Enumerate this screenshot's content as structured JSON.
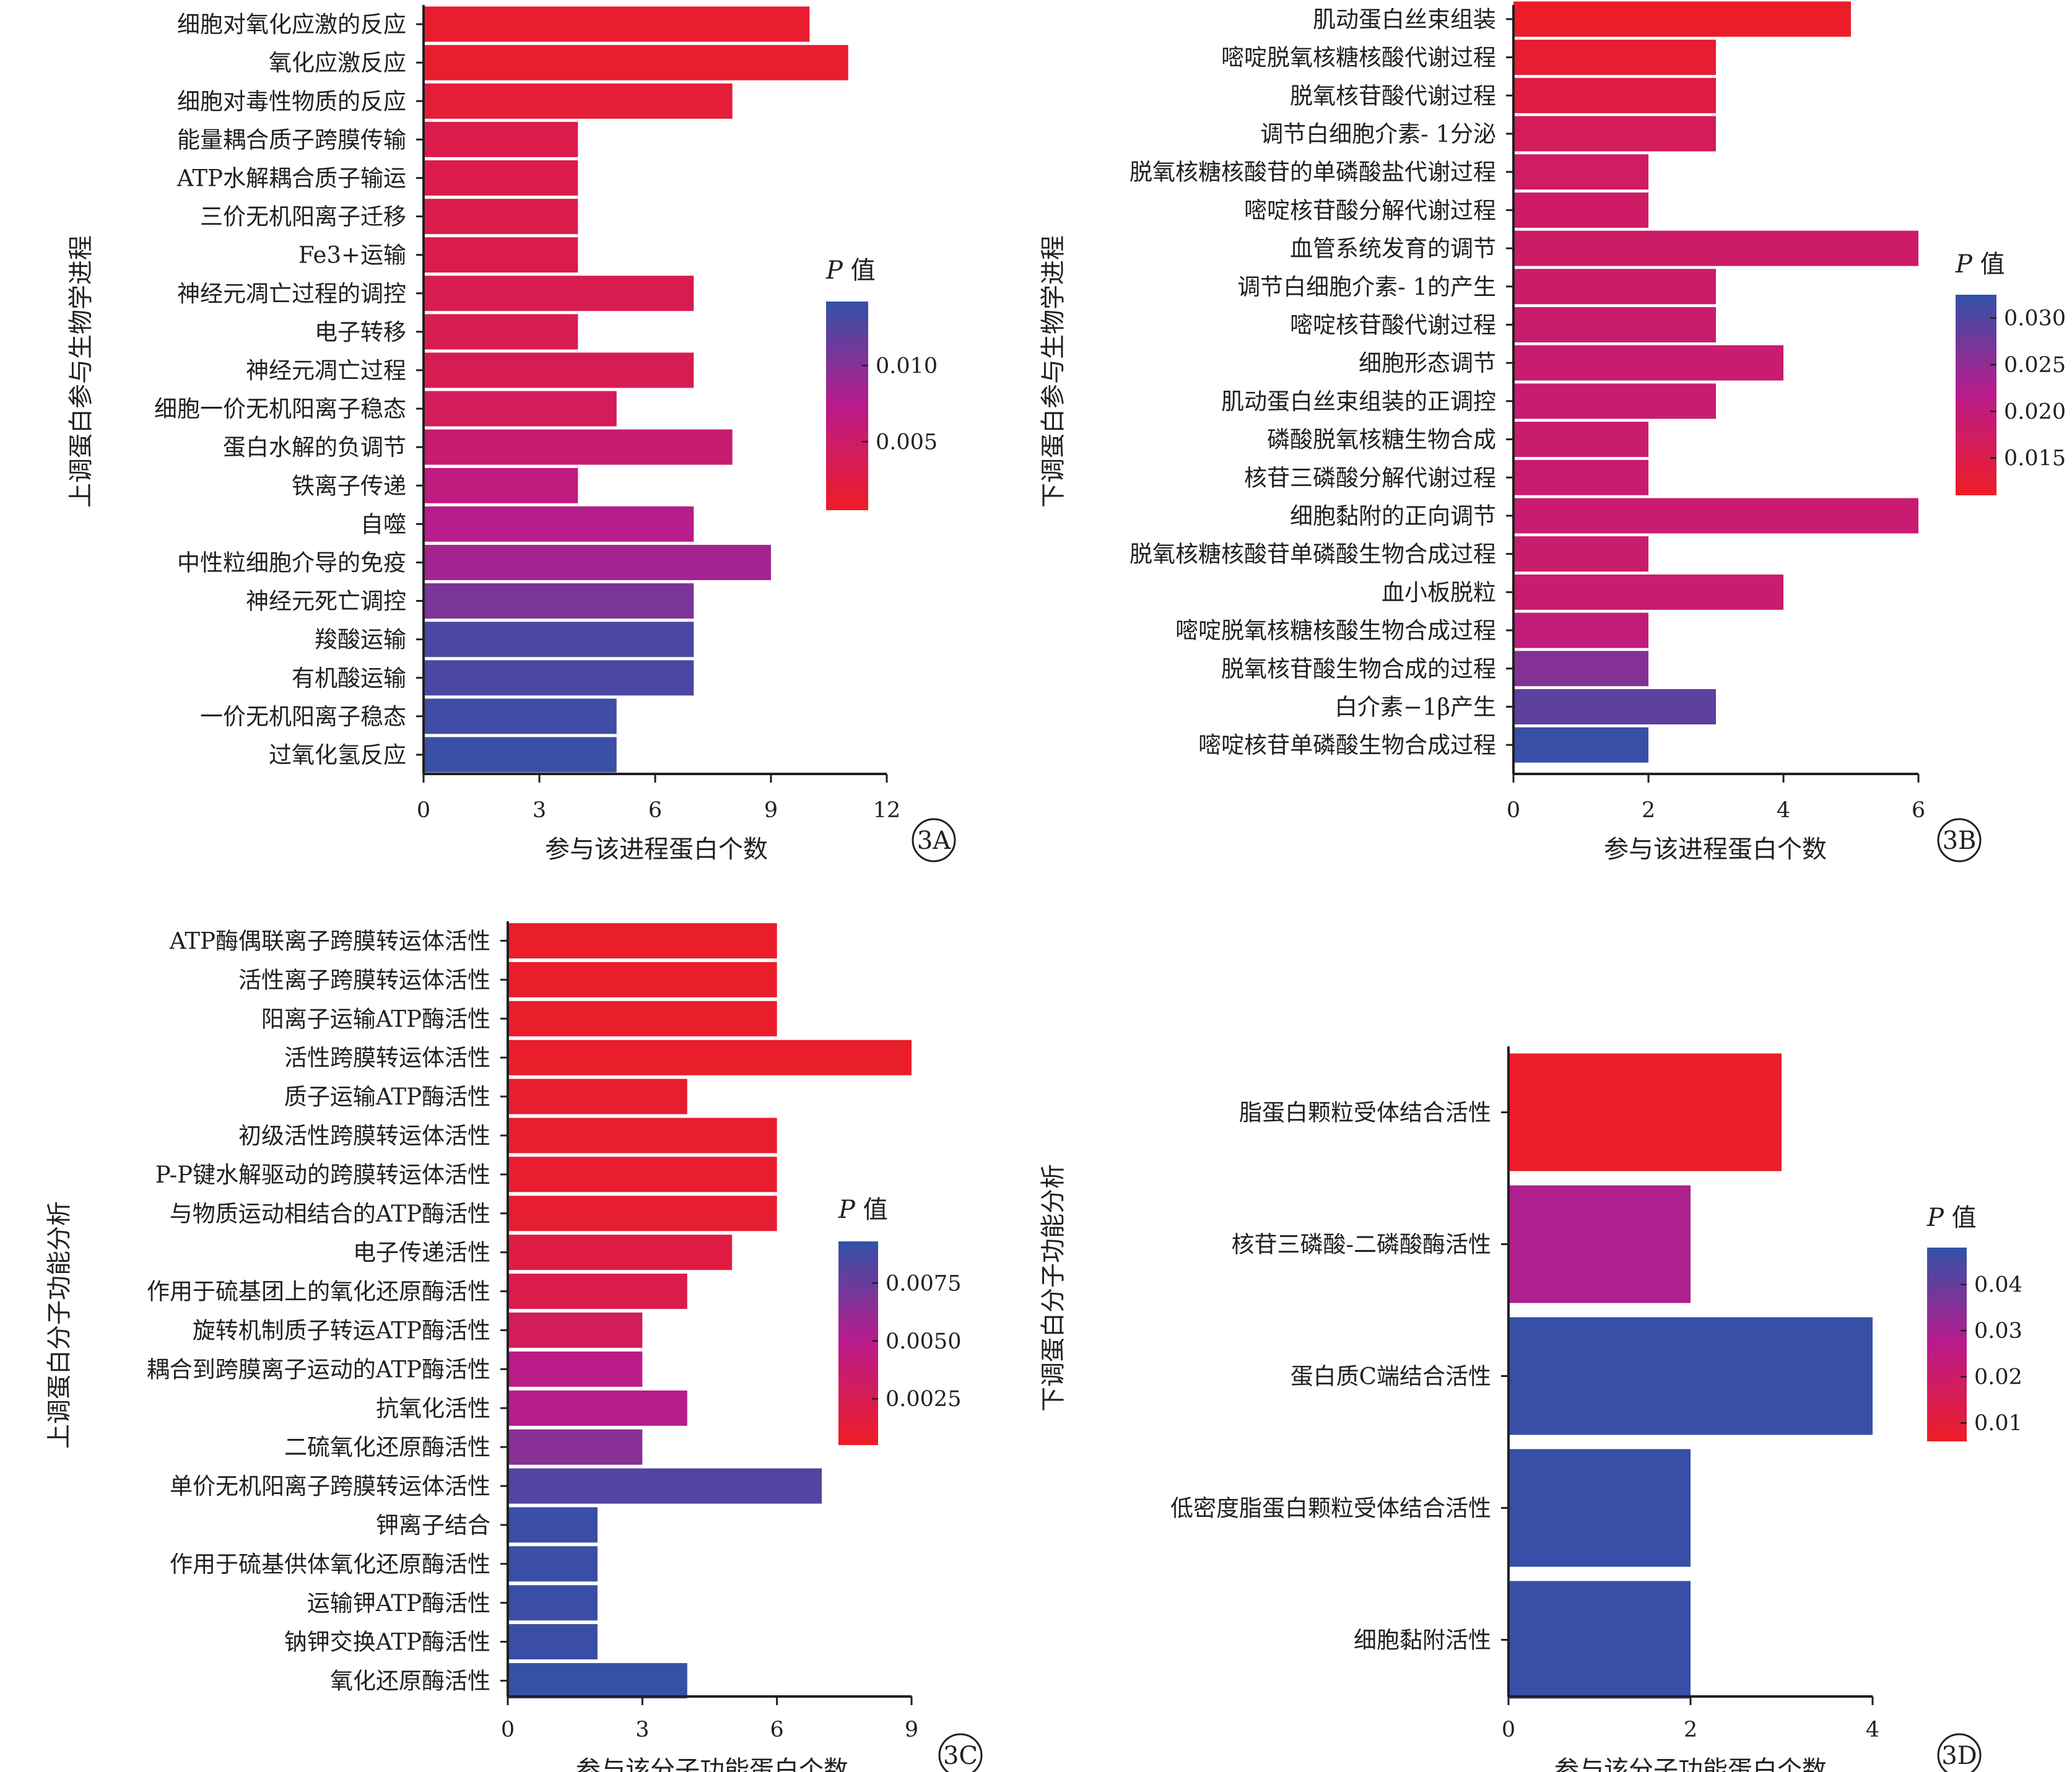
{
  "chart_data": [
    {
      "panel_label": "3A",
      "type": "bar",
      "orientation": "horizontal",
      "xlabel": "参与该进程蛋白个数",
      "ylabel": "上调蛋白参与生物学进程",
      "xlim": [
        0,
        12
      ],
      "xticks": [
        0,
        3,
        6,
        9,
        12
      ],
      "colorbar": {
        "title": "P 值",
        "title_italic": "P",
        "title_rest": " 值",
        "range": [
          0.0005,
          0.0142
        ],
        "ticks": [
          0.005,
          0.01
        ],
        "tick_labels": [
          "0.005",
          "0.010"
        ]
      },
      "categories": [
        "细胞对氧化应激的反应",
        "氧化应激反应",
        "细胞对毒性物质的反应",
        "能量耦合质子跨膜传输",
        "ATP水解耦合质子输运",
        "三价无机阳离子迁移",
        "Fe3+运输",
        "神经元凋亡过程的调控",
        "电子转移",
        "神经元凋亡过程",
        "细胞一价无机阳离子稳态",
        "蛋白水解的负调节",
        "铁离子传递",
        "自噬",
        "中性粒细胞介导的免疫",
        "神经元死亡调控",
        "羧酸运输",
        "有机酸运输",
        "一价无机阳离子稳态",
        "过氧化氢反应"
      ],
      "values": [
        10,
        11,
        8,
        4,
        4,
        4,
        4,
        7,
        4,
        7,
        5,
        8,
        4,
        7,
        9,
        7,
        7,
        7,
        5,
        5
      ],
      "p_values": [
        0.0012,
        0.0013,
        0.0018,
        0.003,
        0.003,
        0.003,
        0.003,
        0.0034,
        0.0035,
        0.0036,
        0.0042,
        0.0055,
        0.0065,
        0.0075,
        0.0085,
        0.0105,
        0.013,
        0.013,
        0.0135,
        0.0138
      ]
    },
    {
      "panel_label": "3B",
      "type": "bar",
      "orientation": "horizontal",
      "xlabel": "参与该进程蛋白个数",
      "ylabel": "下调蛋白参与生物学进程",
      "xlim": [
        0,
        6
      ],
      "xticks": [
        0,
        2,
        4,
        6
      ],
      "colorbar": {
        "title": "P 值",
        "title_italic": "P",
        "title_rest": " 值",
        "range": [
          0.011,
          0.0325
        ],
        "ticks": [
          0.015,
          0.02,
          0.025,
          0.03
        ],
        "tick_labels": [
          "0.015",
          "0.020",
          "0.025",
          "0.030"
        ]
      },
      "categories": [
        "肌动蛋白丝束组装",
        "嘧啶脱氧核糖核酸代谢过程",
        "脱氧核苷酸代谢过程",
        "调节白细胞介素- 1分泌",
        "脱氧核糖核酸苷的单磷酸盐代谢过程",
        "嘧啶核苷酸分解代谢过程",
        "血管系统发育的调节",
        "调节白细胞介素- 1的产生",
        "嘧啶核苷酸代谢过程",
        "细胞形态调节",
        "肌动蛋白丝束组装的正调控",
        "磷酸脱氧核糖生物合成",
        "核苷三磷酸分解代谢过程",
        "细胞黏附的正向调节",
        "脱氧核糖核酸苷单磷酸生物合成过程",
        "血小板脱粒",
        "嘧啶脱氧核糖核酸生物合成过程",
        "脱氧核苷酸生物合成的过程",
        "白介素−1β产生",
        "嘧啶核苷单磷酸生物合成过程"
      ],
      "values": [
        5,
        3,
        3,
        3,
        2,
        2,
        6,
        3,
        3,
        4,
        3,
        2,
        2,
        6,
        2,
        4,
        2,
        2,
        3,
        2
      ],
      "p_values": [
        0.0115,
        0.0125,
        0.014,
        0.0165,
        0.0175,
        0.0178,
        0.018,
        0.0182,
        0.0185,
        0.0188,
        0.019,
        0.0185,
        0.0188,
        0.019,
        0.0185,
        0.0188,
        0.02,
        0.026,
        0.029,
        0.032
      ]
    },
    {
      "panel_label": "3C",
      "type": "bar",
      "orientation": "horizontal",
      "xlabel": "参与该分子功能蛋白个数",
      "ylabel": "上调蛋白分子功能分析",
      "xlim": [
        0,
        9
      ],
      "xticks": [
        0,
        3,
        6,
        9
      ],
      "colorbar": {
        "title": "P 值",
        "title_italic": "P",
        "title_rest": " 值",
        "range": [
          0.0005,
          0.0093
        ],
        "ticks": [
          0.0025,
          0.005,
          0.0075
        ],
        "tick_labels": [
          "0.0025",
          "0.0050",
          "0.0075"
        ]
      },
      "categories": [
        "ATP酶偶联离子跨膜转运体活性",
        "活性离子跨膜转运体活性",
        "阳离子运输ATP酶活性",
        "活性跨膜转运体活性",
        "质子运输ATP酶活性",
        "初级活性跨膜转运体活性",
        "P-P键水解驱动的跨膜转运体活性",
        "与物质运动相结合的ATP酶活性",
        "电子传递活性",
        "作用于硫基团上的氧化还原酶活性",
        "旋转机制质子转运ATP酶活性",
        "耦合到跨膜离子运动的ATP酶活性",
        "抗氧化活性",
        "二硫氧化还原酶活性",
        "单价无机阳离子跨膜转运体活性",
        "钾离子结合",
        "作用于硫基供体氧化还原酶活性",
        "运输钾ATP酶活性",
        "钠钾交换ATP酶活性",
        "氧化还原酶活性"
      ],
      "values": [
        6,
        6,
        6,
        9,
        4,
        6,
        6,
        6,
        5,
        4,
        3,
        3,
        4,
        3,
        7,
        2,
        2,
        2,
        2,
        4
      ],
      "p_values": [
        0.0008,
        0.0008,
        0.0008,
        0.0008,
        0.001,
        0.001,
        0.001,
        0.0011,
        0.0018,
        0.0022,
        0.0028,
        0.0048,
        0.005,
        0.0065,
        0.0082,
        0.009,
        0.009,
        0.009,
        0.009,
        0.0092
      ]
    },
    {
      "panel_label": "3D",
      "type": "bar",
      "orientation": "horizontal",
      "xlabel": "参与该分子功能蛋白个数",
      "ylabel": "下调蛋白分子功能分析",
      "xlim": [
        0,
        4
      ],
      "xticks": [
        0,
        2,
        4
      ],
      "colorbar": {
        "title": "P 值",
        "title_italic": "P",
        "title_rest": " 值",
        "range": [
          0.006,
          0.048
        ],
        "ticks": [
          0.01,
          0.02,
          0.03,
          0.04
        ],
        "tick_labels": [
          "0.01",
          "0.02",
          "0.03",
          "0.04"
        ]
      },
      "categories": [
        "脂蛋白颗粒受体结合活性",
        "核苷三磷酸-二磷酸酶活性",
        "蛋白质C端结合活性",
        "低密度脂蛋白颗粒受体结合活性",
        "细胞黏附活性"
      ],
      "values": [
        3,
        2,
        4,
        2,
        2
      ],
      "p_values": [
        0.007,
        0.029,
        0.047,
        0.047,
        0.047
      ]
    }
  ],
  "colors": {
    "low_p": "#ee1d24",
    "mid_p": "#ba1b8b",
    "high_p": "#3252a8",
    "axis": "#231f20"
  }
}
